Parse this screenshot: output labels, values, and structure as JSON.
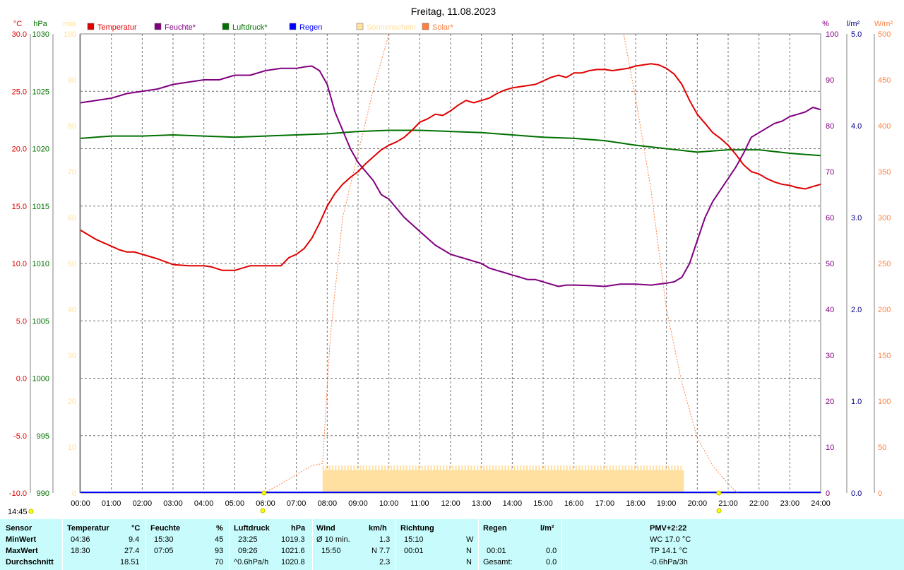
{
  "title": "Freitag, 11.08.2023",
  "colors": {
    "temperature": "#e00000",
    "humidity": "#800080",
    "pressure": "#007000",
    "rain": "#0000ff",
    "sunshine": "#ffe0a0",
    "solar": "#ff8040",
    "stats_bg": "#c8fcfc"
  },
  "legend": [
    {
      "label": "Temperatur",
      "color": "#e00000"
    },
    {
      "label": "Feuchte*",
      "color": "#800080"
    },
    {
      "label": "Luftdruck*",
      "color": "#007000"
    },
    {
      "label": "Regen",
      "color": "#0000ff"
    },
    {
      "label": "Sonnenschein",
      "color": "#ffe0a0"
    },
    {
      "label": "Solar*",
      "color": "#ff8040"
    }
  ],
  "axis_units": {
    "temp": "°C",
    "pressure": "hPa",
    "sun": "min",
    "humidity": "%",
    "rain": "l/m²",
    "solar": "W/m²"
  },
  "current_time": "14:45",
  "chart_data": {
    "type": "line",
    "x_ticks": [
      "00:00",
      "01:00",
      "02:00",
      "03:00",
      "04:00",
      "05:00",
      "06:00",
      "07:00",
      "08:00",
      "09:00",
      "10:00",
      "11:00",
      "12:00",
      "13:00",
      "14:00",
      "15:00",
      "16:00",
      "17:00",
      "18:00",
      "19:00",
      "20:00",
      "21:00",
      "22:00",
      "23:00",
      "24:00"
    ],
    "axes": {
      "temperature": {
        "range": [
          -10,
          30
        ],
        "ticks": [
          "30.0",
          "25.0",
          "20.0",
          "15.0",
          "10.0",
          "5.0",
          "0.0",
          "-5.0",
          "-10.0"
        ]
      },
      "pressure": {
        "range": [
          990,
          1030
        ],
        "ticks": [
          "1030",
          "1025",
          "1020",
          "1015",
          "1010",
          "1005",
          "1000",
          "995",
          "990"
        ]
      },
      "sunshine": {
        "range": [
          0,
          100
        ],
        "ticks": [
          "100",
          "90",
          "80",
          "70",
          "60",
          "50",
          "40",
          "30",
          "20",
          "10",
          "0"
        ]
      },
      "humidity": {
        "range": [
          0,
          100
        ],
        "ticks": [
          "100",
          "90",
          "80",
          "70",
          "60",
          "50",
          "40",
          "30",
          "20",
          "10",
          "0"
        ]
      },
      "rain": {
        "range": [
          0,
          5
        ],
        "ticks": [
          "5.0",
          "4.0",
          "3.0",
          "2.0",
          "1.0",
          "0.0"
        ]
      },
      "solar": {
        "range": [
          0,
          500
        ],
        "ticks": [
          "500",
          "450",
          "400",
          "350",
          "300",
          "250",
          "200",
          "150",
          "100",
          "50",
          "0"
        ]
      }
    },
    "series": [
      {
        "name": "Temperatur",
        "x": [
          0,
          0.25,
          0.5,
          0.75,
          1,
          1.25,
          1.5,
          1.75,
          2,
          2.5,
          3,
          3.5,
          4,
          4.25,
          4.6,
          5,
          5.5,
          6,
          6.5,
          6.75,
          7,
          7.25,
          7.5,
          7.75,
          8,
          8.25,
          8.5,
          8.75,
          9,
          9.25,
          9.5,
          9.75,
          10,
          10.25,
          10.5,
          10.75,
          11,
          11.25,
          11.5,
          11.75,
          12,
          12.25,
          12.5,
          12.75,
          13,
          13.25,
          13.5,
          13.75,
          14,
          14.25,
          14.5,
          14.75,
          15,
          15.25,
          15.5,
          15.75,
          16,
          16.25,
          16.5,
          16.75,
          17,
          17.25,
          17.5,
          17.75,
          18,
          18.25,
          18.5,
          18.75,
          19,
          19.25,
          19.5,
          19.75,
          20,
          20.25,
          20.5,
          20.75,
          21,
          21.25,
          21.5,
          21.75,
          22,
          22.25,
          22.5,
          22.75,
          23,
          23.25,
          23.5,
          23.75,
          24
        ],
        "values": [
          12.9,
          12.5,
          12.1,
          11.8,
          11.5,
          11.2,
          11.0,
          11.0,
          10.8,
          10.4,
          9.9,
          9.8,
          9.8,
          9.7,
          9.4,
          9.4,
          9.8,
          9.8,
          9.8,
          10.5,
          10.8,
          11.3,
          12.2,
          13.5,
          15.0,
          16.1,
          16.9,
          17.5,
          18.0,
          18.7,
          19.3,
          19.9,
          20.3,
          20.6,
          21.0,
          21.6,
          22.3,
          22.6,
          23.0,
          22.9,
          23.3,
          23.8,
          24.2,
          24.0,
          24.2,
          24.4,
          24.8,
          25.1,
          25.3,
          25.4,
          25.5,
          25.6,
          25.9,
          26.2,
          26.4,
          26.2,
          26.6,
          26.6,
          26.8,
          26.9,
          26.9,
          26.8,
          26.9,
          27.0,
          27.2,
          27.3,
          27.4,
          27.3,
          27.0,
          26.5,
          25.6,
          24.2,
          23.0,
          22.2,
          21.4,
          20.9,
          20.3,
          19.5,
          18.6,
          18.0,
          17.8,
          17.4,
          17.1,
          16.9,
          16.8,
          16.6,
          16.5,
          16.7,
          16.9
        ]
      },
      {
        "name": "Feuchte*",
        "x": [
          0,
          0.5,
          1,
          1.5,
          2,
          2.5,
          3,
          3.5,
          4,
          4.5,
          5,
          5.5,
          6,
          6.5,
          7,
          7.25,
          7.5,
          7.75,
          8,
          8.25,
          8.5,
          8.75,
          9,
          9.25,
          9.5,
          9.75,
          10,
          10.25,
          10.5,
          10.75,
          11,
          11.25,
          11.5,
          11.75,
          12,
          12.25,
          12.5,
          12.75,
          13,
          13.25,
          13.5,
          13.75,
          14,
          14.25,
          14.5,
          14.75,
          15,
          15.25,
          15.5,
          15.75,
          16,
          16.5,
          17,
          17.5,
          18,
          18.5,
          19,
          19.25,
          19.5,
          19.75,
          20,
          20.25,
          20.5,
          20.75,
          21,
          21.25,
          21.5,
          21.75,
          22,
          22.25,
          22.5,
          22.75,
          23,
          23.25,
          23.5,
          23.75,
          24
        ],
        "values": [
          85,
          85.5,
          86,
          87,
          87.5,
          88,
          89,
          89.5,
          90,
          90,
          91,
          91,
          92,
          92.5,
          92.5,
          92.8,
          93,
          92,
          89,
          83,
          79,
          75,
          72,
          70,
          68,
          65,
          64,
          62,
          60,
          58.5,
          57,
          55.5,
          54,
          53,
          52,
          51.5,
          51,
          50.5,
          50,
          49,
          48.5,
          48,
          47.5,
          47,
          46.5,
          46.5,
          46,
          45.5,
          45,
          45.3,
          45.3,
          45.2,
          45,
          45.5,
          45.5,
          45.3,
          45.7,
          46,
          47,
          50,
          55,
          60,
          63.5,
          66,
          68.5,
          71,
          74,
          77.5,
          78.5,
          79.5,
          80.5,
          81,
          82,
          82.5,
          83,
          84,
          83.5
        ]
      },
      {
        "name": "Luftdruck*",
        "x": [
          0,
          1,
          2,
          3,
          4,
          5,
          6,
          7,
          8,
          9,
          10,
          11,
          12,
          13,
          14,
          15,
          16,
          17,
          18,
          19,
          20,
          21,
          22,
          23,
          24
        ],
        "values": [
          1020.9,
          1021.1,
          1021.1,
          1021.2,
          1021.1,
          1021.0,
          1021.1,
          1021.2,
          1021.3,
          1021.5,
          1021.6,
          1021.6,
          1021.5,
          1021.4,
          1021.2,
          1021.0,
          1020.9,
          1020.7,
          1020.3,
          1020.0,
          1019.7,
          1019.9,
          1019.9,
          1019.6,
          1019.4
        ]
      },
      {
        "name": "Solar*",
        "x": [
          5.95,
          6.5,
          7,
          7.5,
          7.85,
          8.1,
          8.5,
          9,
          9.5,
          10,
          10.5,
          10.9,
          17.5,
          18,
          18.5,
          19,
          19.5,
          20,
          20.5,
          21,
          21.3
        ],
        "values": [
          0,
          10,
          20,
          30,
          32,
          170,
          300,
          370,
          440,
          500,
          560,
          520,
          520,
          430,
          330,
          200,
          120,
          60,
          30,
          10,
          0
        ]
      },
      {
        "name": "Sonnenschein",
        "range": [
          7.85,
          19.55
        ],
        "values": [
          5
        ]
      }
    ],
    "rain_total": 0.0
  },
  "stats": {
    "headers": {
      "sensor": "Sensor",
      "temp": "Temperatur",
      "temp_unit": "°C",
      "hum": "Feuchte",
      "hum_unit": "%",
      "press": "Luftdruck",
      "press_unit": "hPa",
      "wind": "Wind",
      "wind_unit": "km/h",
      "dir": "Richtung",
      "rain": "Regen",
      "rain_unit": "l/m²",
      "pmv": "PMV+2:22"
    },
    "rows": {
      "min": {
        "label": "MinWert",
        "temp_time": "04:36",
        "temp_val": "9.4",
        "hum_time": "15:30",
        "hum_val": "45",
        "press_time": "23:25",
        "press_val": "1019.3",
        "wind_label": "Ø 10 min.",
        "wind_val": "1.3",
        "dir_time": "15:10",
        "dir_val": "W",
        "extra": "WC 17.0 °C"
      },
      "max": {
        "label": "MaxWert",
        "temp_time": "18:30",
        "temp_val": "27.4",
        "hum_time": "07:05",
        "hum_val": "93",
        "press_time": "09:26",
        "press_val": "1021.6",
        "wind_time": "15:50",
        "wind_val": "N 7.7",
        "dir_time": "00:01",
        "dir_val": "N",
        "rain_time": "00:01",
        "rain_val": "0.0",
        "extra": "TP 14.1 °C"
      },
      "avg": {
        "label": "Durchschnitt",
        "temp_val": "18.51",
        "hum_val": "70",
        "press_label": "^0.6hPa/h",
        "press_val": "1020.8",
        "wind_val": "2.3",
        "dir_val": "N",
        "rain_label": "Gesamt:",
        "rain_val": "0.0",
        "extra": "-0.6hPa/3h"
      }
    }
  }
}
